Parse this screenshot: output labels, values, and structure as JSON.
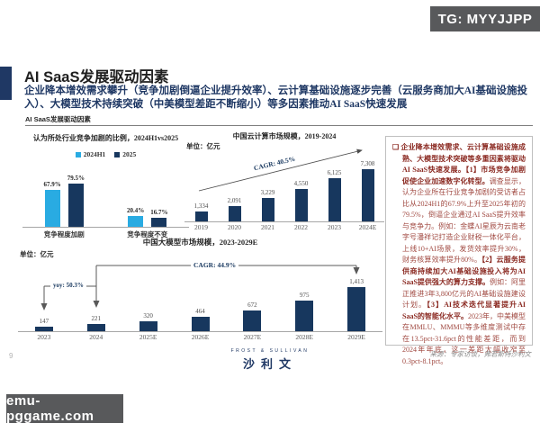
{
  "badges": {
    "tg": "TG: MYYJJPP",
    "site": "emu-pggame.com"
  },
  "header": {
    "title": "AI SaaS发展驱动因素",
    "subtitle": "企业降本增效需求攀升（竞争加剧倒逼企业提升效率）、云计算基础设施逐步完善（云服务商加大AI基础设施投入）、大模型技术持续突破（中美模型差距不断缩小）等多因素推动AI SaaS快速发展",
    "section_label": "AI SaaS发展驱动因素"
  },
  "chart_data": [
    {
      "type": "bar",
      "title": "认为所处行业竞争加剧的比例，2024H1vs2025",
      "categories": [
        "竞争程度加剧",
        "竞争程度不变"
      ],
      "series": [
        {
          "name": "2024H1",
          "color": "#29abe2",
          "values": [
            67.9,
            20.4
          ],
          "labels": [
            "67.9%",
            "20.4%"
          ]
        },
        {
          "name": "2025",
          "color": "#17375e",
          "values": [
            79.5,
            16.7
          ],
          "labels": [
            "79.5%",
            "16.7%"
          ]
        }
      ],
      "ylim": [
        0,
        100
      ],
      "unit": "%",
      "legend_position": "top"
    },
    {
      "type": "bar",
      "title": "中国云计算市场规模，2019-2024",
      "unit_label": "单位：亿元",
      "categories": [
        "2019",
        "2020",
        "2021",
        "2022",
        "2023",
        "2024E"
      ],
      "values": [
        1334,
        2091,
        3229,
        4550,
        6125,
        7308
      ],
      "labels": [
        "1,334",
        "2,091",
        "3,229",
        "4,550",
        "6,125",
        "7,308"
      ],
      "annotation": "CAGR: 40.5%",
      "bar_color": "#17375e"
    },
    {
      "type": "bar",
      "title": "中国大模型市场规模，2023-2029E",
      "unit_label": "单位：亿元",
      "categories": [
        "2023",
        "2024",
        "2025E",
        "2026E",
        "2027E",
        "2028E",
        "2029E"
      ],
      "values": [
        147,
        221,
        320,
        464,
        672,
        975,
        1413
      ],
      "labels": [
        "147",
        "221",
        "320",
        "464",
        "672",
        "975",
        "1,413"
      ],
      "annotation": "CAGR: 44.9%",
      "annotation2": "yoy: 50.3%",
      "bar_color": "#17375e"
    }
  ],
  "panel": {
    "bullet": "❑",
    "segments": [
      {
        "bold": true,
        "text": "企业降本增效需求、云计算基础设施成熟、大模型技术突破等多重因素将驱动AI SaaS快速发展。【1】市场竞争加剧促使企业加速数字化转型。"
      },
      {
        "bold": false,
        "text": "调查显示，认为企业所在行业竞争加剧的受访者占比从2024H1的67.9%上升至2025年初的79.5%，倒逼企业通过AI SaaS提升效率与竞争力。例如：金蝶AI星辰为云南老字号潘祥记打造企业财税一体化平台，上线10+AI场景，发货效率提升30%，财务核算效率提升80%。"
      },
      {
        "bold": true,
        "text": "【2】云服务提供商持续加大AI基础设施投入将为AI SaaS提供强大的算力支撑。"
      },
      {
        "bold": false,
        "text": "例如：阿里正推进3年3,800亿元的AI基础设施建设计划。"
      },
      {
        "bold": true,
        "text": "【3】AI技术迭代显著提升AI SaaS的智能化水平。"
      },
      {
        "bold": false,
        "text": "2023年，中美模型在MMLU、MMMU等多维度测试中存在13.5pct-31.6pct的性能差距，而到2024年年底，这一差距大幅收窄至0.3pct-8.1pct。"
      }
    ]
  },
  "footer": {
    "page": "9",
    "logo_top": "FROST & SULLIVAN",
    "logo_main": "沙利文",
    "source": "来源：专家访谈，弗若斯特沙利文"
  },
  "colors": {
    "navy": "#17375e",
    "cyan": "#29abe2",
    "accent": "#1f3864",
    "panel_red": "#a14a42"
  }
}
